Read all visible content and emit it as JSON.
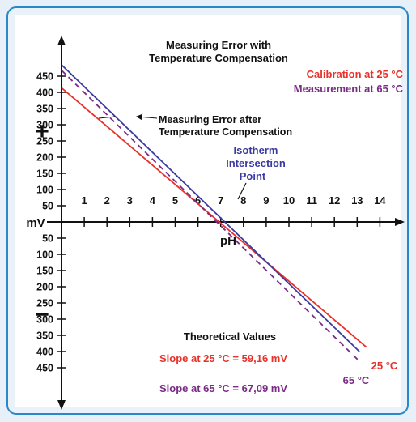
{
  "chart_data": {
    "type": "line",
    "title": "Measuring Error with",
    "title_line2": "Temperature Compensation",
    "xlabel": "pH",
    "ylabel": "mV",
    "x_ticks": [
      "1",
      "2",
      "3",
      "4",
      "5",
      "6",
      "7",
      "8",
      "9",
      "10",
      "11",
      "12",
      "13",
      "14"
    ],
    "y_ticks_positive": [
      "450",
      "400",
      "350",
      "300",
      "250",
      "200",
      "150",
      "100",
      "50"
    ],
    "y_ticks_negative": [
      "50",
      "100",
      "150",
      "200",
      "250",
      "300",
      "350",
      "400",
      "450"
    ],
    "plus_sign": "+",
    "minus_sign": "−",
    "xlim": [
      0,
      14.5
    ],
    "ylim": [
      -480,
      490
    ],
    "legend": {
      "calibration": "Calibration at 25 °C",
      "measurement": "Measurement at 65 °C",
      "calibration_color": "#e8312a",
      "measurement_color": "#7b2a85"
    },
    "annotations": {
      "error_after_line1": "Measuring Error after",
      "error_after_line2": "Temperature Compensation",
      "isotherm_line1": "Isotherm",
      "isotherm_line2": "Intersection",
      "isotherm_line3": "Point",
      "theoretical_values": "Theoretical Values",
      "slope_25": "Slope at 25 °C = 59,16 mV",
      "slope_65": "Slope at 65 °C = 67,09 mV",
      "label_25": "25 °C",
      "label_65": "65 °C"
    },
    "series": [
      {
        "name": "Calibration at 25 °C",
        "color": "#e8312a",
        "style": "solid",
        "x": [
          0,
          13.4
        ],
        "y": [
          414,
          -386
        ]
      },
      {
        "name": "Measurement at 65 °C",
        "color": "#7b2a85",
        "style": "dashed",
        "x": [
          0,
          13.1
        ],
        "y": [
          468,
          -430
        ]
      },
      {
        "name": "",
        "color": "#3b3aa0",
        "style": "solid",
        "x": [
          0,
          13.1
        ],
        "y": [
          485,
          -400
        ]
      }
    ],
    "colors": {
      "axis": "#111111",
      "isotherm_text": "#3b3aa0",
      "frame": "#2b87c7"
    }
  }
}
